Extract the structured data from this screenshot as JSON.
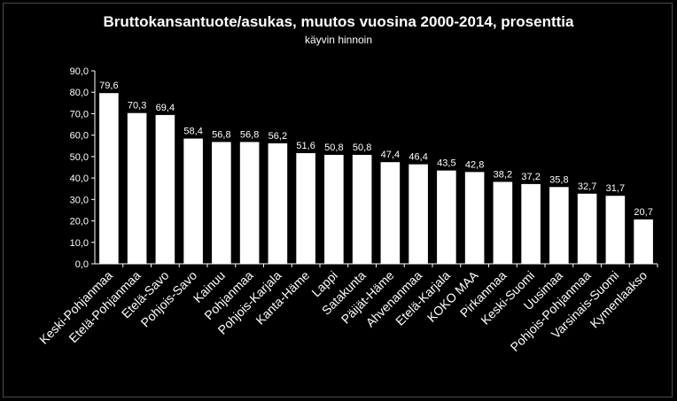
{
  "chart_data": {
    "type": "bar",
    "title": "Bruttokansantuote/asukas, muutos vuosina 2000-2014, prosenttia",
    "subtitle": "käyvin hinnoin",
    "xlabel": "",
    "ylabel": "",
    "ylim": [
      0,
      90
    ],
    "yticks": [
      "0,0",
      "10,0",
      "20,0",
      "30,0",
      "40,0",
      "50,0",
      "60,0",
      "70,0",
      "80,0",
      "90,0"
    ],
    "grid": false,
    "categories": [
      "Keski-Pohjanmaa",
      "Etelä-Pohjanmaa",
      "Etelä-Savo",
      "Pohjois-Savo",
      "Kainuu",
      "Pohjanmaa",
      "Pohjois-Karjala",
      "Kanta-Häme",
      "Lappi",
      "Satakunta",
      "Päijät-Häme",
      "Ahvenanmaa",
      "Etelä-Karjala",
      "KOKO MAA",
      "Pirkanmaa",
      "Keski-Suomi",
      "Uusimaa",
      "Pohjois-Pohjanmaa",
      "Varsinais-Suomi",
      "Kymenlaakso"
    ],
    "values": [
      79.6,
      70.3,
      69.4,
      58.4,
      56.8,
      56.8,
      56.2,
      51.6,
      50.8,
      50.8,
      47.4,
      46.4,
      43.5,
      42.8,
      38.2,
      37.2,
      35.8,
      32.7,
      31.7,
      20.7
    ],
    "value_labels": [
      "79,6",
      "70,3",
      "69,4",
      "58,4",
      "56,8",
      "56,8",
      "56,2",
      "51,6",
      "50,8",
      "50,8",
      "47,4",
      "46,4",
      "43,5",
      "42,8",
      "38,2",
      "37,2",
      "35,8",
      "32,7",
      "31,7",
      "20,7"
    ],
    "bar_color": "#ffffff",
    "background_color": "#000000",
    "text_color": "#ffffff"
  }
}
